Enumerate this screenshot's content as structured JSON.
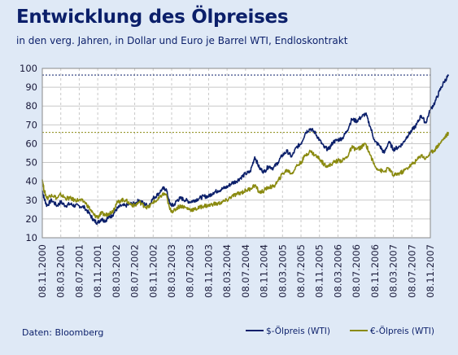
{
  "chart_data": {
    "type": "line",
    "title": "Entwicklung des Ölpreises",
    "subtitle": "in den verg. Jahren, in Dollar und Euro je Barrel WTI, Endloskontrakt",
    "source": "Daten: Bloomberg",
    "xlabel": "",
    "ylabel": "",
    "ylim": [
      10,
      100
    ],
    "yticks": [
      10,
      20,
      30,
      40,
      50,
      60,
      70,
      80,
      90,
      100
    ],
    "x_tick_labels": [
      "08.11.2000",
      "08.03.2001",
      "08.07.2001",
      "08.11.2001",
      "08.03.2002",
      "08.07.2002",
      "08.11.2002",
      "08.03.2003",
      "08.07.2003",
      "08.11.2003",
      "08.03.2004",
      "08.07.2004",
      "08.11.2004",
      "08.03.2005",
      "08.07.2005",
      "08.11.2005",
      "08.03.2006",
      "08.07.2006",
      "08.11.2006",
      "08.03.2007",
      "08.07.2007",
      "08.11.2007"
    ],
    "reference_lines": [
      {
        "series": "$-Ölpreis (WTI)",
        "value": 96.5,
        "color": "#0b1f6a"
      },
      {
        "series": "€-Ölpreis (WTI)",
        "value": 66,
        "color": "#8a8a10"
      }
    ],
    "grid": true,
    "legend_position": "bottom-right",
    "series": [
      {
        "name": "$-Ölpreis (WTI)",
        "color": "#0b1f6a",
        "points": [
          [
            0,
            35
          ],
          [
            0.1,
            31
          ],
          [
            0.25,
            27
          ],
          [
            0.5,
            30
          ],
          [
            0.8,
            27
          ],
          [
            1,
            29
          ],
          [
            1.25,
            27
          ],
          [
            1.5,
            28
          ],
          [
            1.75,
            27
          ],
          [
            2,
            27
          ],
          [
            2.3,
            26
          ],
          [
            2.6,
            22
          ],
          [
            2.8,
            19
          ],
          [
            3,
            18
          ],
          [
            3.2,
            20
          ],
          [
            3.4,
            19
          ],
          [
            3.6,
            21
          ],
          [
            3.8,
            22
          ],
          [
            4,
            25
          ],
          [
            4.25,
            27
          ],
          [
            4.5,
            27
          ],
          [
            4.75,
            28
          ],
          [
            5,
            28
          ],
          [
            5.25,
            30
          ],
          [
            5.5,
            28
          ],
          [
            5.75,
            27
          ],
          [
            6,
            31
          ],
          [
            6.25,
            33
          ],
          [
            6.5,
            36
          ],
          [
            6.7,
            36
          ],
          [
            6.9,
            28
          ],
          [
            7.1,
            27
          ],
          [
            7.3,
            30
          ],
          [
            7.5,
            31
          ],
          [
            7.75,
            30
          ],
          [
            8,
            29
          ],
          [
            8.25,
            30
          ],
          [
            8.5,
            31
          ],
          [
            8.75,
            32
          ],
          [
            9,
            32
          ],
          [
            9.25,
            34
          ],
          [
            9.5,
            35
          ],
          [
            9.75,
            36
          ],
          [
            10,
            37
          ],
          [
            10.25,
            39
          ],
          [
            10.5,
            40
          ],
          [
            10.75,
            42
          ],
          [
            11,
            44
          ],
          [
            11.25,
            45
          ],
          [
            11.5,
            53
          ],
          [
            11.75,
            47
          ],
          [
            12,
            45
          ],
          [
            12.25,
            48
          ],
          [
            12.5,
            47
          ],
          [
            12.75,
            50
          ],
          [
            13,
            54
          ],
          [
            13.25,
            56
          ],
          [
            13.5,
            53
          ],
          [
            13.75,
            58
          ],
          [
            14,
            60
          ],
          [
            14.25,
            66
          ],
          [
            14.5,
            68
          ],
          [
            14.75,
            66
          ],
          [
            15,
            62
          ],
          [
            15.25,
            58
          ],
          [
            15.5,
            57
          ],
          [
            15.75,
            61
          ],
          [
            16,
            62
          ],
          [
            16.25,
            63
          ],
          [
            16.5,
            67
          ],
          [
            16.75,
            73
          ],
          [
            17,
            72
          ],
          [
            17.25,
            74
          ],
          [
            17.5,
            76
          ],
          [
            17.75,
            69
          ],
          [
            18,
            61
          ],
          [
            18.25,
            59
          ],
          [
            18.5,
            55
          ],
          [
            18.75,
            61
          ],
          [
            19,
            57
          ],
          [
            19.25,
            58
          ],
          [
            19.5,
            60
          ],
          [
            19.75,
            64
          ],
          [
            20,
            67
          ],
          [
            20.25,
            70
          ],
          [
            20.5,
            75
          ],
          [
            20.75,
            71
          ],
          [
            21,
            78
          ],
          [
            21.25,
            82
          ],
          [
            21.5,
            88
          ],
          [
            21.75,
            93
          ],
          [
            22,
            96.5
          ]
        ]
      },
      {
        "name": "€-Ölpreis (WTI)",
        "color": "#8a8a10",
        "points": [
          [
            0,
            41
          ],
          [
            0.1,
            35
          ],
          [
            0.25,
            31
          ],
          [
            0.5,
            33
          ],
          [
            0.8,
            31
          ],
          [
            1,
            33
          ],
          [
            1.25,
            31
          ],
          [
            1.5,
            31
          ],
          [
            1.75,
            30
          ],
          [
            2,
            30
          ],
          [
            2.3,
            29
          ],
          [
            2.6,
            25
          ],
          [
            2.8,
            22
          ],
          [
            3,
            21
          ],
          [
            3.2,
            23
          ],
          [
            3.4,
            22
          ],
          [
            3.6,
            23
          ],
          [
            3.8,
            24
          ],
          [
            4,
            28
          ],
          [
            4.25,
            30
          ],
          [
            4.5,
            30
          ],
          [
            4.75,
            28
          ],
          [
            5,
            27
          ],
          [
            5.25,
            29
          ],
          [
            5.5,
            27
          ],
          [
            5.75,
            26
          ],
          [
            6,
            29
          ],
          [
            6.25,
            30
          ],
          [
            6.5,
            33
          ],
          [
            6.7,
            33
          ],
          [
            6.9,
            25
          ],
          [
            7.1,
            24
          ],
          [
            7.3,
            26
          ],
          [
            7.5,
            27
          ],
          [
            7.75,
            26
          ],
          [
            8,
            25
          ],
          [
            8.25,
            25
          ],
          [
            8.5,
            26
          ],
          [
            8.75,
            27
          ],
          [
            9,
            27
          ],
          [
            9.25,
            28
          ],
          [
            9.5,
            28
          ],
          [
            9.75,
            29
          ],
          [
            10,
            30
          ],
          [
            10.25,
            32
          ],
          [
            10.5,
            33
          ],
          [
            10.75,
            34
          ],
          [
            11,
            35
          ],
          [
            11.25,
            36
          ],
          [
            11.5,
            38
          ],
          [
            11.75,
            34
          ],
          [
            12,
            35
          ],
          [
            12.25,
            37
          ],
          [
            12.5,
            37
          ],
          [
            12.75,
            40
          ],
          [
            13,
            44
          ],
          [
            13.25,
            46
          ],
          [
            13.5,
            44
          ],
          [
            13.75,
            48
          ],
          [
            14,
            50
          ],
          [
            14.25,
            54
          ],
          [
            14.5,
            56
          ],
          [
            14.75,
            54
          ],
          [
            15,
            52
          ],
          [
            15.25,
            49
          ],
          [
            15.5,
            48
          ],
          [
            15.75,
            50
          ],
          [
            16,
            51
          ],
          [
            16.25,
            51
          ],
          [
            16.5,
            53
          ],
          [
            16.75,
            58
          ],
          [
            17,
            57
          ],
          [
            17.25,
            58
          ],
          [
            17.5,
            60
          ],
          [
            17.75,
            54
          ],
          [
            18,
            48
          ],
          [
            18.25,
            46
          ],
          [
            18.5,
            45
          ],
          [
            18.75,
            47
          ],
          [
            19,
            43
          ],
          [
            19.25,
            44
          ],
          [
            19.5,
            45
          ],
          [
            19.75,
            47
          ],
          [
            20,
            49
          ],
          [
            20.25,
            51
          ],
          [
            20.5,
            54
          ],
          [
            20.75,
            52
          ],
          [
            21,
            55
          ],
          [
            21.25,
            57
          ],
          [
            21.5,
            60
          ],
          [
            21.75,
            63
          ],
          [
            22,
            66
          ]
        ]
      }
    ]
  }
}
